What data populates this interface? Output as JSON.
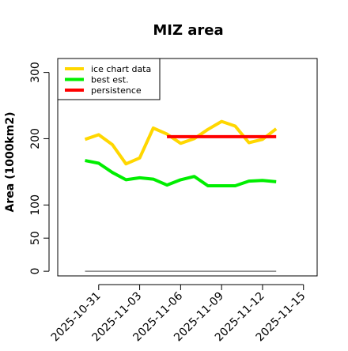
{
  "chart_data": {
    "type": "line",
    "title": "MIZ area",
    "xlabel": "",
    "ylabel": "Area (1000km2)",
    "xlim": [
      "2025-10-28",
      "2025-11-16"
    ],
    "ylim": [
      -7,
      321
    ],
    "y_ticks": [
      0,
      50,
      100,
      200,
      300
    ],
    "x_ticks": [
      "2025-10-31",
      "2025-11-03",
      "2025-11-06",
      "2025-11-09",
      "2025-11-12",
      "2025-11-15"
    ],
    "grid": false,
    "legend_position": "top-left",
    "series": [
      {
        "name": "ice chart data",
        "color": "#ffd700",
        "x": [
          "2025-10-30",
          "2025-10-31",
          "2025-11-01",
          "2025-11-02",
          "2025-11-03",
          "2025-11-04",
          "2025-11-05",
          "2025-11-06",
          "2025-11-07",
          "2025-11-08",
          "2025-11-09",
          "2025-11-10",
          "2025-11-11",
          "2025-11-12",
          "2025-11-13"
        ],
        "values": [
          199,
          206,
          191,
          162,
          171,
          216,
          207,
          193,
          200,
          214,
          226,
          219,
          194,
          199,
          215
        ]
      },
      {
        "name": "best est.",
        "color": "#00ee00",
        "x": [
          "2025-10-30",
          "2025-10-31",
          "2025-11-01",
          "2025-11-02",
          "2025-11-03",
          "2025-11-04",
          "2025-11-05",
          "2025-11-06",
          "2025-11-07",
          "2025-11-08",
          "2025-11-09",
          "2025-11-10",
          "2025-11-11",
          "2025-11-12",
          "2025-11-13"
        ],
        "values": [
          167,
          163,
          149,
          138,
          141,
          139,
          130,
          138,
          143,
          129,
          129,
          129,
          136,
          137,
          135
        ]
      },
      {
        "name": "persistence",
        "color": "#ff0000",
        "x": [
          "2025-11-05",
          "2025-11-13"
        ],
        "values": [
          203,
          203
        ]
      },
      {
        "name": "",
        "color": "#808080",
        "x": [
          "2025-10-30",
          "2025-11-13"
        ],
        "values": [
          0,
          0
        ]
      }
    ]
  }
}
